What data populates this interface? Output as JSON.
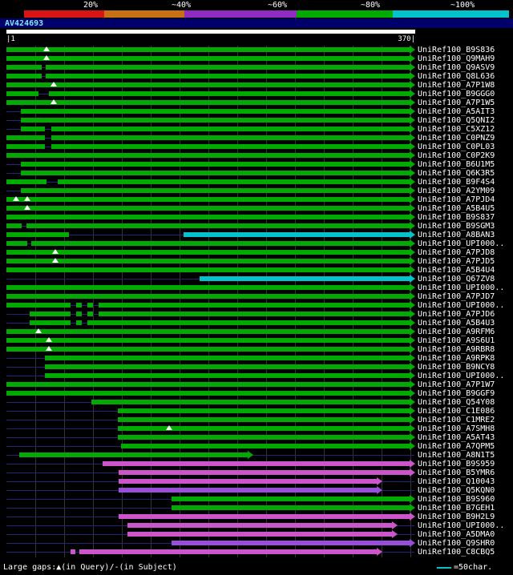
{
  "query": {
    "accession": "AV424693",
    "ruler_left": "|1",
    "ruler_right": "370|"
  },
  "footer": {
    "gaps_note": "Large gaps:▲(in Query)/-(in Subject)",
    "scale_note": "=50char."
  },
  "chart_data": {
    "type": "bar",
    "subtype": "sequence-similarity-alignment-overview",
    "title": "AV424693 similarity search graphic overview",
    "x_axis": {
      "min": 1,
      "max": 370,
      "unit": "residues"
    },
    "grid": true,
    "palette": {
      "green": "#00aa00",
      "cyan": "#00c3cc",
      "magenta": "#cc55cc",
      "violet": "#9a4ddd"
    },
    "identity_legend": [
      {
        "label": "20%",
        "color": "#d81414"
      },
      {
        "label": "~40%",
        "color": "#c87014"
      },
      {
        "label": "~60%",
        "color": "#8f2bbf"
      },
      {
        "label": "~80%",
        "color": "#00aa00"
      },
      {
        "label": "~100%",
        "color": "#00c3cc"
      }
    ],
    "rows": [
      {
        "label": "UniRef100_B9S836",
        "segs": [
          [
            1,
            370,
            "green"
          ]
        ],
        "tris": [
          38
        ]
      },
      {
        "label": "UniRef100_Q9MAH9",
        "segs": [
          [
            1,
            370,
            "green"
          ]
        ],
        "tris": [
          38
        ]
      },
      {
        "label": "UniRef100_Q9ASV9",
        "segs": [
          [
            1,
            33,
            "green"
          ],
          [
            37,
            370,
            "green"
          ]
        ],
        "tris": []
      },
      {
        "label": "UniRef100_Q8L636",
        "segs": [
          [
            1,
            33,
            "green"
          ],
          [
            37,
            370,
            "green"
          ]
        ],
        "tris": []
      },
      {
        "label": "UniRef100_A7P1W8",
        "segs": [
          [
            1,
            370,
            "green"
          ]
        ],
        "tris": [
          44
        ]
      },
      {
        "label": "UniRef100_B9GGG0",
        "segs": [
          [
            1,
            30,
            "green"
          ],
          [
            40,
            370,
            "green"
          ]
        ],
        "tris": []
      },
      {
        "label": "UniRef100_A7P1W5",
        "segs": [
          [
            1,
            370,
            "green"
          ]
        ],
        "tris": [
          44
        ]
      },
      {
        "label": "UniRef100_A5AIT3",
        "segs": [
          [
            14,
            370,
            "green"
          ]
        ],
        "tris": []
      },
      {
        "label": "UniRef100_Q5QNI2",
        "segs": [
          [
            14,
            370,
            "green"
          ]
        ],
        "tris": []
      },
      {
        "label": "UniRef100_C5XZ12",
        "segs": [
          [
            14,
            36,
            "green"
          ],
          [
            42,
            370,
            "green"
          ]
        ],
        "tris": []
      },
      {
        "label": "UniRef100_C0PNZ9",
        "segs": [
          [
            1,
            36,
            "green"
          ],
          [
            42,
            370,
            "green"
          ]
        ],
        "tris": []
      },
      {
        "label": "UniRef100_C0PL03",
        "segs": [
          [
            1,
            36,
            "green"
          ],
          [
            42,
            370,
            "green"
          ]
        ],
        "tris": []
      },
      {
        "label": "UniRef100_C0P2K9",
        "segs": [
          [
            1,
            370,
            "green"
          ]
        ],
        "tris": []
      },
      {
        "label": "UniRef100_B6U1M5",
        "segs": [
          [
            14,
            370,
            "green"
          ]
        ],
        "tris": []
      },
      {
        "label": "UniRef100_Q6K3R5",
        "segs": [
          [
            14,
            370,
            "green"
          ]
        ],
        "tris": []
      },
      {
        "label": "UniRef100_B9F4S4",
        "segs": [
          [
            1,
            38,
            "green"
          ],
          [
            48,
            370,
            "green"
          ]
        ],
        "tris": []
      },
      {
        "label": "UniRef100_A2YM09",
        "segs": [
          [
            14,
            370,
            "green"
          ]
        ],
        "tris": []
      },
      {
        "label": "UniRef100_A7PJD4",
        "segs": [
          [
            1,
            370,
            "green"
          ]
        ],
        "tris": [
          10,
          20
        ]
      },
      {
        "label": "UniRef100_A5B4U5",
        "segs": [
          [
            1,
            370,
            "green"
          ]
        ],
        "tris": [
          20
        ]
      },
      {
        "label": "UniRef100_B9S837",
        "segs": [
          [
            1,
            370,
            "green"
          ]
        ],
        "tris": []
      },
      {
        "label": "UniRef100_B9SGM3",
        "segs": [
          [
            1,
            15,
            "green"
          ],
          [
            19,
            370,
            "green"
          ]
        ],
        "tris": []
      },
      {
        "label": "UniRef100_A8BAN3",
        "segs": [
          [
            1,
            58,
            "green"
          ],
          [
            163,
            370,
            "cyan"
          ]
        ],
        "tris": []
      },
      {
        "label": "UniRef100_UPI000..",
        "segs": [
          [
            1,
            20,
            "green"
          ],
          [
            24,
            370,
            "green"
          ]
        ],
        "tris": []
      },
      {
        "label": "UniRef100_A7PJD8",
        "segs": [
          [
            1,
            370,
            "green"
          ]
        ],
        "tris": [
          46
        ]
      },
      {
        "label": "UniRef100_A7PJD5",
        "segs": [
          [
            1,
            370,
            "green"
          ]
        ],
        "tris": [
          46
        ]
      },
      {
        "label": "UniRef100_A5B4U4",
        "segs": [
          [
            1,
            370,
            "green"
          ]
        ],
        "tris": []
      },
      {
        "label": "UniRef100_Q67ZV8",
        "segs": [
          [
            178,
            370,
            "cyan"
          ]
        ],
        "tris": []
      },
      {
        "label": "UniRef100_UPI000..",
        "segs": [
          [
            1,
            370,
            "green"
          ]
        ],
        "tris": []
      },
      {
        "label": "UniRef100_A7PJD7",
        "segs": [
          [
            1,
            370,
            "green"
          ]
        ],
        "tris": []
      },
      {
        "label": "UniRef100_UPI000..",
        "segs": [
          [
            1,
            60,
            "green"
          ],
          [
            65,
            70,
            "green"
          ],
          [
            75,
            80,
            "green"
          ],
          [
            85,
            370,
            "green"
          ]
        ],
        "tris": []
      },
      {
        "label": "UniRef100_A7PJD6",
        "segs": [
          [
            22,
            60,
            "green"
          ],
          [
            65,
            70,
            "green"
          ],
          [
            75,
            80,
            "green"
          ],
          [
            85,
            370,
            "green"
          ]
        ],
        "tris": []
      },
      {
        "label": "UniRef100_A5B4U3",
        "segs": [
          [
            22,
            60,
            "green"
          ],
          [
            65,
            70,
            "green"
          ],
          [
            75,
            370,
            "green"
          ]
        ],
        "tris": []
      },
      {
        "label": "UniRef100_A9RFM6",
        "segs": [
          [
            1,
            370,
            "green"
          ]
        ],
        "tris": [
          30
        ]
      },
      {
        "label": "UniRef100_A9S6U1",
        "segs": [
          [
            1,
            370,
            "green"
          ]
        ],
        "tris": [
          40
        ]
      },
      {
        "label": "UniRef100_A9RBR8",
        "segs": [
          [
            1,
            370,
            "green"
          ]
        ],
        "tris": [
          40
        ]
      },
      {
        "label": "UniRef100_A9RPK8",
        "segs": [
          [
            36,
            370,
            "green"
          ]
        ],
        "tris": []
      },
      {
        "label": "UniRef100_B9NCY8",
        "segs": [
          [
            36,
            370,
            "green"
          ]
        ],
        "tris": []
      },
      {
        "label": "UniRef100_UPI000..",
        "segs": [
          [
            36,
            370,
            "green"
          ]
        ],
        "tris": []
      },
      {
        "label": "UniRef100_A7P1W7",
        "segs": [
          [
            1,
            370,
            "green"
          ]
        ],
        "tris": []
      },
      {
        "label": "UniRef100_B9GGF9",
        "segs": [
          [
            1,
            370,
            "green"
          ]
        ],
        "tris": []
      },
      {
        "label": "UniRef100_Q54Y08",
        "segs": [
          [
            79,
            370,
            "green"
          ]
        ],
        "tris": []
      },
      {
        "label": "UniRef100_C1E086",
        "segs": [
          [
            103,
            370,
            "green"
          ]
        ],
        "tris": []
      },
      {
        "label": "UniRef100_C1MRE2",
        "segs": [
          [
            103,
            370,
            "green"
          ]
        ],
        "tris": []
      },
      {
        "label": "UniRef100_A7SMH8",
        "segs": [
          [
            103,
            370,
            "green"
          ]
        ],
        "tris": [
          150
        ]
      },
      {
        "label": "UniRef100_A5AT43",
        "segs": [
          [
            103,
            370,
            "green"
          ]
        ],
        "tris": []
      },
      {
        "label": "UniRef100_A7QPM5",
        "segs": [
          [
            106,
            370,
            "green"
          ]
        ],
        "tris": []
      },
      {
        "label": "UniRef100_A8N1T5",
        "segs": [
          [
            13,
            222,
            "green"
          ]
        ],
        "tris": []
      },
      {
        "label": "UniRef100_B9S959",
        "segs": [
          [
            89,
            370,
            "magenta"
          ]
        ],
        "tris": []
      },
      {
        "label": "UniRef100_B5YMR6",
        "segs": [
          [
            104,
            370,
            "magenta"
          ]
        ],
        "tris": []
      },
      {
        "label": "UniRef100_Q10043",
        "segs": [
          [
            104,
            340,
            "magenta"
          ]
        ],
        "tris": []
      },
      {
        "label": "UniRef100_Q5KQN0",
        "segs": [
          [
            104,
            340,
            "violet"
          ]
        ],
        "tris": []
      },
      {
        "label": "UniRef100_B9S960",
        "segs": [
          [
            152,
            370,
            "green"
          ]
        ],
        "tris": []
      },
      {
        "label": "UniRef100_B7GEH1",
        "segs": [
          [
            152,
            370,
            "green"
          ]
        ],
        "tris": []
      },
      {
        "label": "UniRef100_B9H2L9",
        "segs": [
          [
            104,
            370,
            "magenta"
          ]
        ],
        "tris": []
      },
      {
        "label": "UniRef100_UPI000..",
        "segs": [
          [
            112,
            354,
            "magenta"
          ]
        ],
        "tris": []
      },
      {
        "label": "UniRef100_A5DMA0",
        "segs": [
          [
            112,
            354,
            "magenta"
          ]
        ],
        "tris": []
      },
      {
        "label": "UniRef100_Q9SHR0",
        "segs": [
          [
            152,
            370,
            "violet"
          ]
        ],
        "tris": []
      },
      {
        "label": "UniRef100_C8CBQ5",
        "segs": [
          [
            60,
            64,
            "magenta"
          ],
          [
            68,
            340,
            "magenta"
          ]
        ],
        "tris": []
      }
    ]
  }
}
